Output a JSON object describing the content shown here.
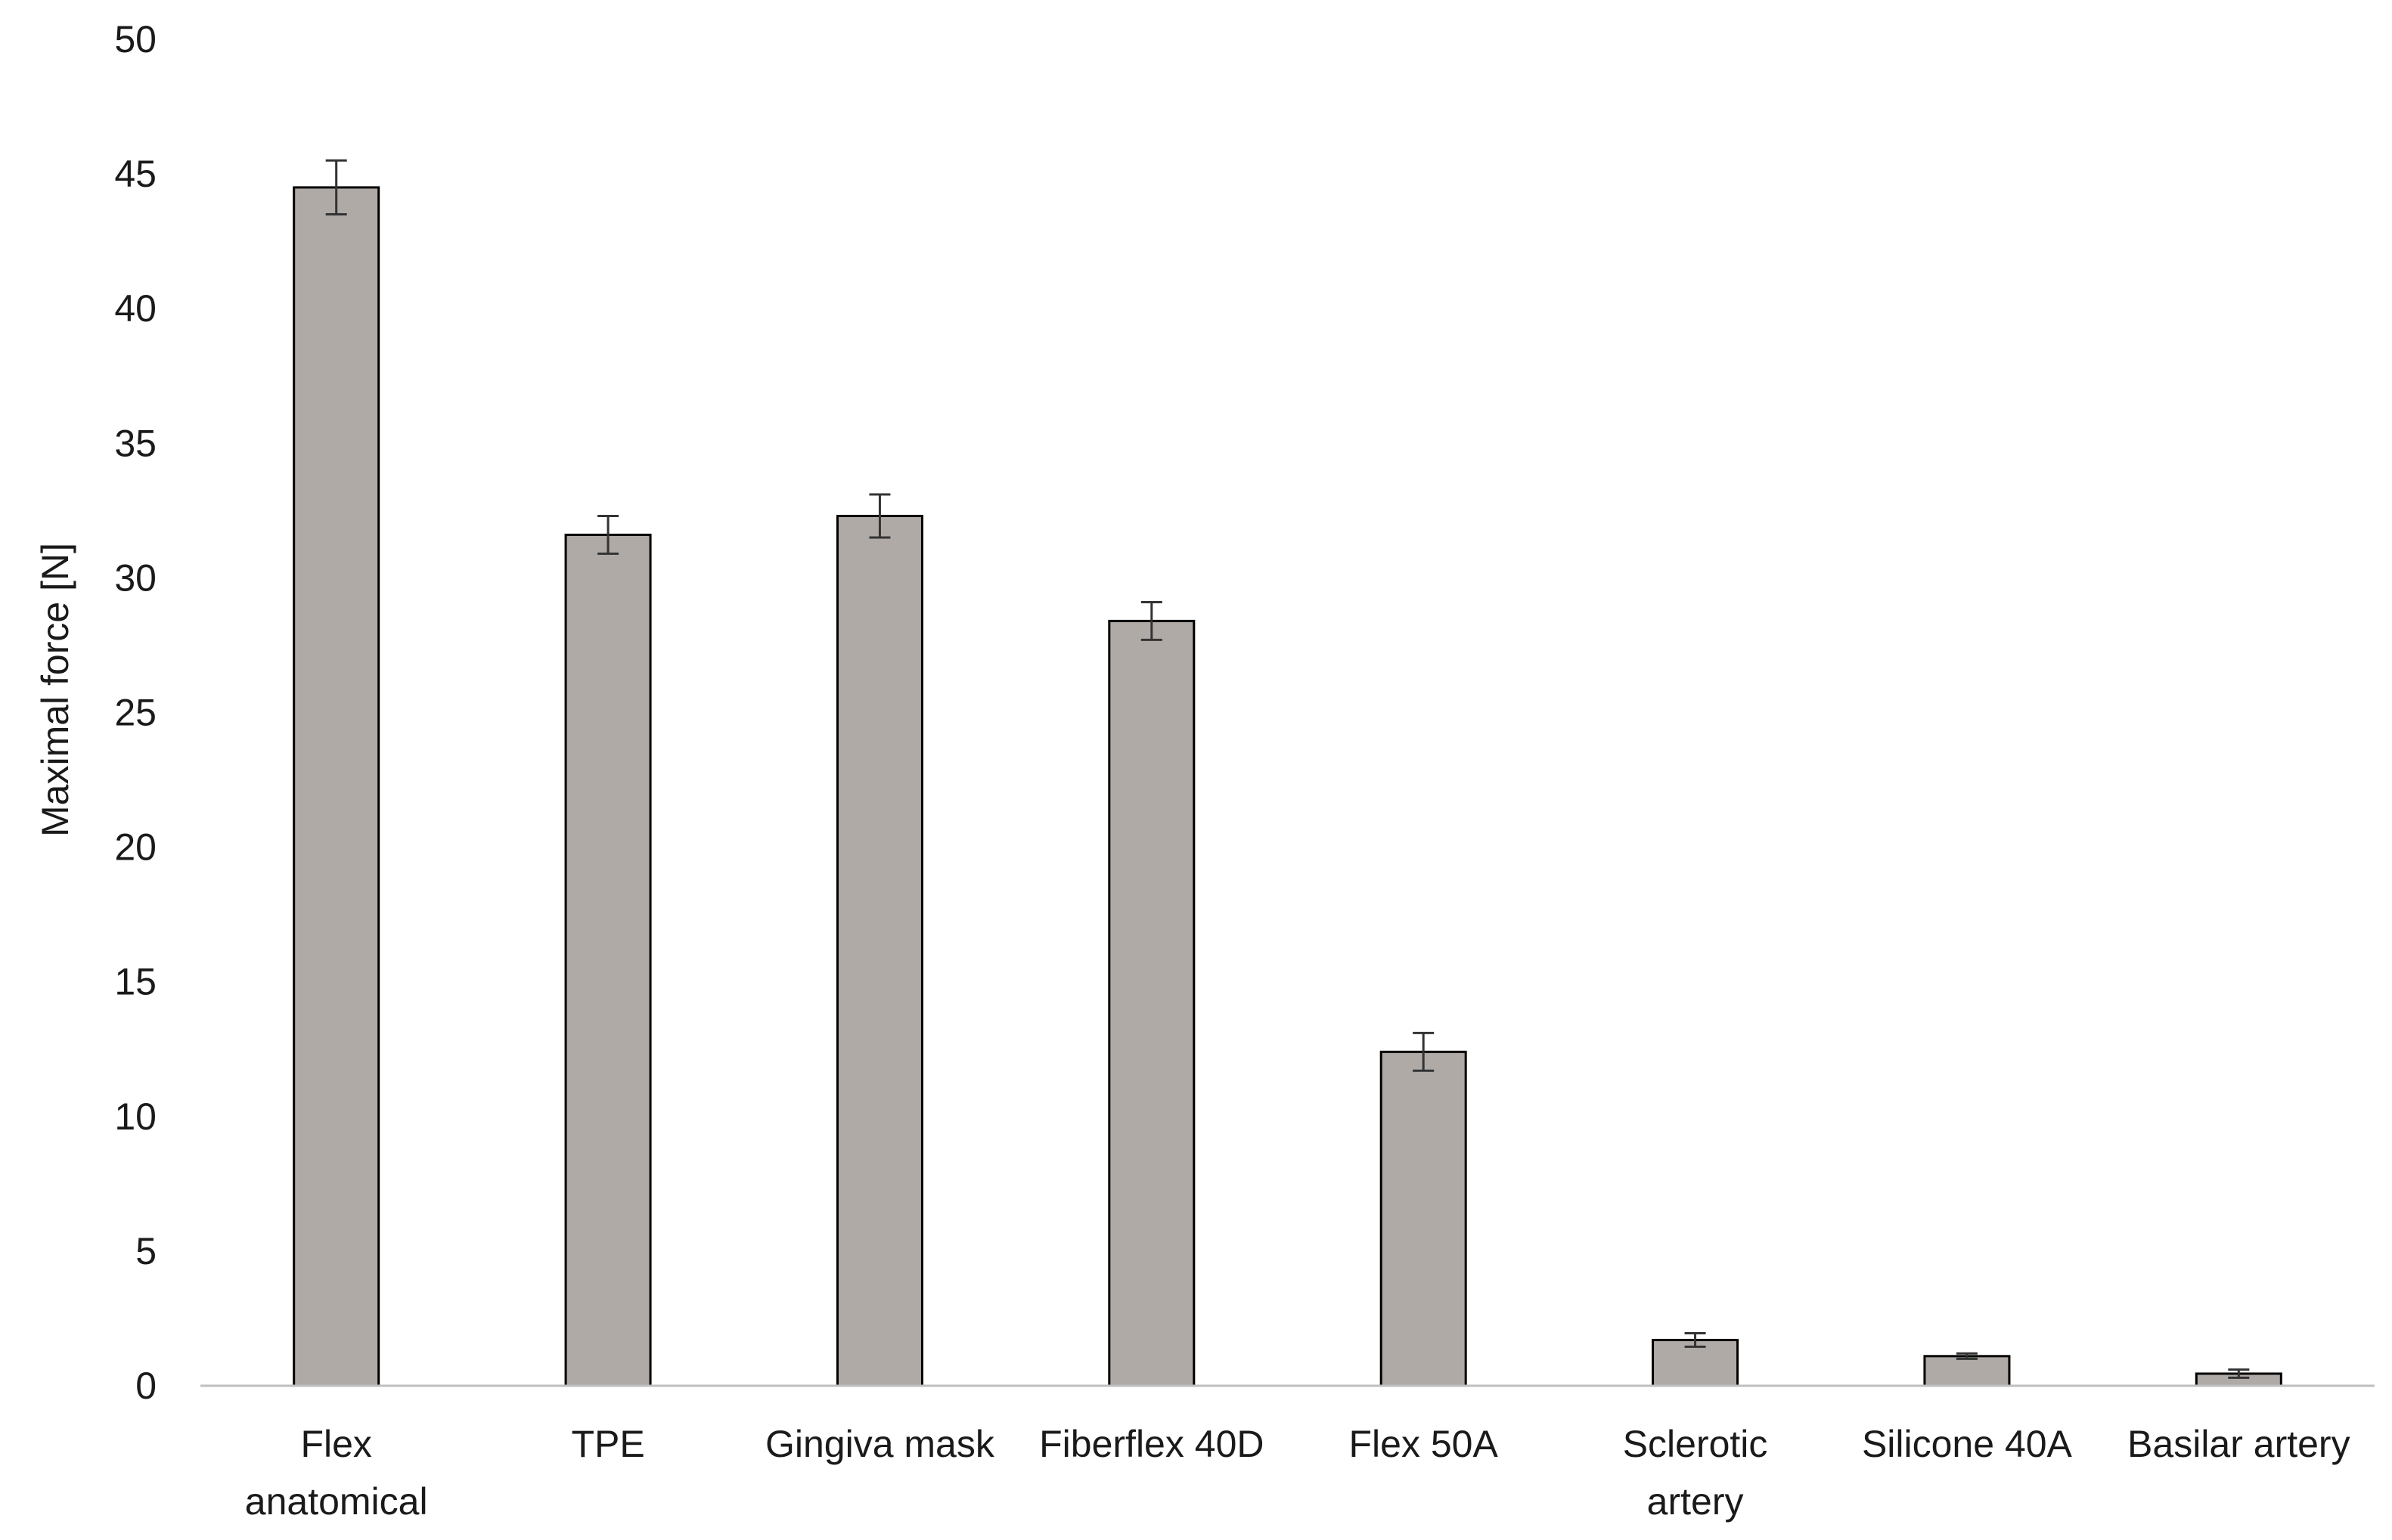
{
  "chart_data": {
    "type": "bar",
    "title": "",
    "xlabel": "",
    "ylabel": "Maximal force [N]",
    "ylim": [
      0,
      50
    ],
    "y_ticks": [
      0,
      5,
      10,
      15,
      20,
      25,
      30,
      35,
      40,
      45,
      50
    ],
    "grid": false,
    "legend": "none",
    "categories": [
      [
        "Flex",
        "anatomical"
      ],
      [
        "TPE"
      ],
      [
        "Gingiva mask"
      ],
      [
        "Fiberflex 40D"
      ],
      [
        "Flex 50A"
      ],
      [
        "Sclerotic",
        "artery"
      ],
      [
        "Silicone 40A"
      ],
      [
        "Basilar artery"
      ]
    ],
    "values": [
      44.5,
      31.6,
      32.3,
      28.4,
      12.4,
      1.7,
      1.1,
      0.45
    ],
    "errors": [
      1.0,
      0.7,
      0.8,
      0.7,
      0.7,
      0.25,
      0.1,
      0.15
    ],
    "colors": {
      "bar_fill": "#b0aaa7",
      "bar_stroke": "#000000",
      "error_bar": "#333333",
      "axis_line": "#bfbfbf",
      "text": "#1a1a1a"
    }
  }
}
